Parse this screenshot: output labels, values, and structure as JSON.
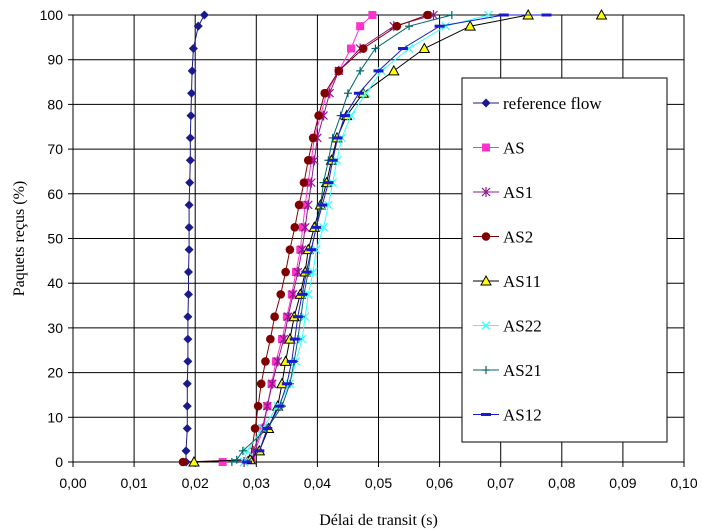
{
  "chart_data": {
    "type": "line",
    "title": "",
    "xlabel": "Délai de transit (s)",
    "ylabel": "Paquets reçus (%)",
    "xlim": [
      0,
      0.1
    ],
    "ylim": [
      0,
      100
    ],
    "x_ticks": [
      "0,00",
      "0,01",
      "0,02",
      "0,03",
      "0,04",
      "0,05",
      "0,06",
      "0,07",
      "0,08",
      "0,09",
      "0,10"
    ],
    "y_ticks": [
      "0",
      "10",
      "20",
      "30",
      "40",
      "50",
      "60",
      "70",
      "80",
      "90",
      "100"
    ],
    "grid": true,
    "legend_position": "right",
    "series": [
      {
        "name": "reference flow",
        "color": "#1a1a8c",
        "marker": "diamond",
        "points": [
          [
            0.0185,
            0
          ],
          [
            0.0185,
            2.5
          ],
          [
            0.0187,
            7.5
          ],
          [
            0.0187,
            12.5
          ],
          [
            0.0187,
            17.5
          ],
          [
            0.0188,
            22.5
          ],
          [
            0.0188,
            27.5
          ],
          [
            0.0188,
            32.5
          ],
          [
            0.0189,
            37.5
          ],
          [
            0.0189,
            42.5
          ],
          [
            0.019,
            47.5
          ],
          [
            0.019,
            52.5
          ],
          [
            0.019,
            57.5
          ],
          [
            0.0191,
            62.5
          ],
          [
            0.0192,
            67.5
          ],
          [
            0.0192,
            72.5
          ],
          [
            0.0193,
            77.5
          ],
          [
            0.0194,
            82.5
          ],
          [
            0.0195,
            87.5
          ],
          [
            0.0197,
            92.5
          ],
          [
            0.0205,
            97.5
          ],
          [
            0.0215,
            100
          ]
        ]
      },
      {
        "name": "AS",
        "color": "#ff33cc",
        "marker": "square",
        "points": [
          [
            0.0245,
            0
          ],
          [
            0.0292,
            0.5
          ],
          [
            0.0312,
            7.5
          ],
          [
            0.0318,
            12.5
          ],
          [
            0.0325,
            17.5
          ],
          [
            0.0332,
            22.5
          ],
          [
            0.0342,
            27.5
          ],
          [
            0.035,
            32.5
          ],
          [
            0.0358,
            37.5
          ],
          [
            0.0365,
            42.5
          ],
          [
            0.0372,
            47.5
          ],
          [
            0.0376,
            52.5
          ],
          [
            0.038,
            57.5
          ],
          [
            0.0385,
            62.5
          ],
          [
            0.039,
            67.5
          ],
          [
            0.0395,
            72.5
          ],
          [
            0.0405,
            77.5
          ],
          [
            0.0415,
            82.5
          ],
          [
            0.0435,
            87.5
          ],
          [
            0.0455,
            92.5
          ],
          [
            0.047,
            97.5
          ],
          [
            0.049,
            100
          ]
        ]
      },
      {
        "name": "AS1",
        "color": "#8c1a8c",
        "marker": "star",
        "points": [
          [
            0.028,
            0
          ],
          [
            0.0295,
            2.5
          ],
          [
            0.031,
            7.5
          ],
          [
            0.0318,
            12.5
          ],
          [
            0.0326,
            17.5
          ],
          [
            0.0335,
            22.5
          ],
          [
            0.0345,
            27.5
          ],
          [
            0.0352,
            32.5
          ],
          [
            0.036,
            37.5
          ],
          [
            0.0368,
            42.5
          ],
          [
            0.0375,
            47.5
          ],
          [
            0.038,
            52.5
          ],
          [
            0.0385,
            57.5
          ],
          [
            0.039,
            62.5
          ],
          [
            0.0395,
            67.5
          ],
          [
            0.04,
            72.5
          ],
          [
            0.041,
            77.5
          ],
          [
            0.042,
            82.5
          ],
          [
            0.0435,
            87.5
          ],
          [
            0.047,
            92.5
          ],
          [
            0.0525,
            97.5
          ],
          [
            0.059,
            100
          ]
        ]
      },
      {
        "name": "AS2",
        "color": "#800000",
        "marker": "circle",
        "points": [
          [
            0.018,
            0
          ],
          [
            0.029,
            0.5
          ],
          [
            0.0298,
            7.5
          ],
          [
            0.0303,
            12.5
          ],
          [
            0.0308,
            17.5
          ],
          [
            0.0315,
            22.5
          ],
          [
            0.0323,
            27.5
          ],
          [
            0.033,
            32.5
          ],
          [
            0.034,
            37.5
          ],
          [
            0.0348,
            42.5
          ],
          [
            0.0355,
            47.5
          ],
          [
            0.0363,
            52.5
          ],
          [
            0.037,
            57.5
          ],
          [
            0.0378,
            62.5
          ],
          [
            0.0385,
            67.5
          ],
          [
            0.0393,
            72.5
          ],
          [
            0.0402,
            77.5
          ],
          [
            0.0412,
            82.5
          ],
          [
            0.0435,
            87.5
          ],
          [
            0.0475,
            92.5
          ],
          [
            0.053,
            97.5
          ],
          [
            0.058,
            100
          ]
        ]
      },
      {
        "name": "AS11",
        "color": "#000000",
        "marker": "triangle",
        "fill": "#ffff00",
        "points": [
          [
            0.0198,
            0
          ],
          [
            0.029,
            0.5
          ],
          [
            0.0305,
            2.5
          ],
          [
            0.032,
            7.5
          ],
          [
            0.0335,
            12.5
          ],
          [
            0.0342,
            17.5
          ],
          [
            0.0348,
            22.5
          ],
          [
            0.0355,
            27.5
          ],
          [
            0.0362,
            32.5
          ],
          [
            0.0372,
            37.5
          ],
          [
            0.038,
            42.5
          ],
          [
            0.0385,
            47.5
          ],
          [
            0.0395,
            52.5
          ],
          [
            0.0405,
            57.5
          ],
          [
            0.0415,
            62.5
          ],
          [
            0.0423,
            67.5
          ],
          [
            0.0432,
            72.5
          ],
          [
            0.0448,
            77.5
          ],
          [
            0.0475,
            82.5
          ],
          [
            0.0525,
            87.5
          ],
          [
            0.0575,
            92.5
          ],
          [
            0.065,
            97.5
          ],
          [
            0.0745,
            100
          ],
          [
            0.0865,
            100
          ]
        ]
      },
      {
        "name": "AS22",
        "color": "#33ffff",
        "marker": "x",
        "points": [
          [
            0.028,
            0
          ],
          [
            0.0285,
            2.5
          ],
          [
            0.031,
            7.5
          ],
          [
            0.0335,
            12.5
          ],
          [
            0.0355,
            17.5
          ],
          [
            0.0365,
            22.5
          ],
          [
            0.0375,
            27.5
          ],
          [
            0.038,
            32.5
          ],
          [
            0.0385,
            37.5
          ],
          [
            0.0393,
            42.5
          ],
          [
            0.0398,
            47.5
          ],
          [
            0.041,
            52.5
          ],
          [
            0.0418,
            57.5
          ],
          [
            0.0425,
            62.5
          ],
          [
            0.0432,
            67.5
          ],
          [
            0.044,
            72.5
          ],
          [
            0.0455,
            77.5
          ],
          [
            0.048,
            82.5
          ],
          [
            0.0505,
            87.5
          ],
          [
            0.055,
            92.5
          ],
          [
            0.061,
            97.5
          ],
          [
            0.068,
            100
          ]
        ]
      },
      {
        "name": "AS21",
        "color": "#006666",
        "marker": "plus",
        "points": [
          [
            0.026,
            0
          ],
          [
            0.0268,
            0.5
          ],
          [
            0.0278,
            2.5
          ],
          [
            0.0318,
            7.5
          ],
          [
            0.0342,
            12.5
          ],
          [
            0.0355,
            17.5
          ],
          [
            0.0362,
            22.5
          ],
          [
            0.0368,
            27.5
          ],
          [
            0.0373,
            32.5
          ],
          [
            0.0378,
            37.5
          ],
          [
            0.0385,
            42.5
          ],
          [
            0.039,
            47.5
          ],
          [
            0.0398,
            52.5
          ],
          [
            0.0405,
            57.5
          ],
          [
            0.041,
            62.5
          ],
          [
            0.0418,
            67.5
          ],
          [
            0.0425,
            72.5
          ],
          [
            0.0438,
            77.5
          ],
          [
            0.045,
            82.5
          ],
          [
            0.047,
            87.5
          ],
          [
            0.0495,
            92.5
          ],
          [
            0.055,
            97.5
          ],
          [
            0.062,
            100
          ]
        ]
      },
      {
        "name": "AS12",
        "color": "#1a1acc",
        "marker": "dash",
        "points": [
          [
            0.0285,
            0
          ],
          [
            0.0305,
            2.5
          ],
          [
            0.0318,
            7.5
          ],
          [
            0.0338,
            12.5
          ],
          [
            0.035,
            17.5
          ],
          [
            0.0358,
            22.5
          ],
          [
            0.0363,
            27.5
          ],
          [
            0.0368,
            32.5
          ],
          [
            0.0375,
            37.5
          ],
          [
            0.0382,
            42.5
          ],
          [
            0.039,
            47.5
          ],
          [
            0.0398,
            52.5
          ],
          [
            0.0408,
            57.5
          ],
          [
            0.0418,
            62.5
          ],
          [
            0.0425,
            67.5
          ],
          [
            0.0433,
            72.5
          ],
          [
            0.0445,
            77.5
          ],
          [
            0.0468,
            82.5
          ],
          [
            0.05,
            87.5
          ],
          [
            0.054,
            92.5
          ],
          [
            0.06,
            97.5
          ],
          [
            0.0705,
            100
          ],
          [
            0.0775,
            100
          ]
        ]
      }
    ]
  }
}
